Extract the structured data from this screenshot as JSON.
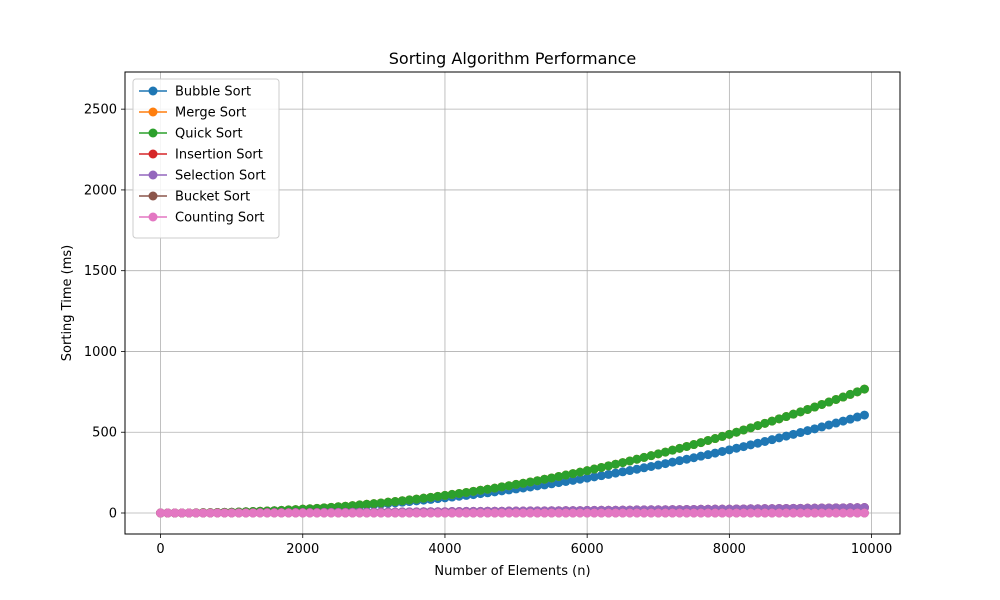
{
  "chart_data": {
    "type": "line",
    "title": "Sorting Algorithm Performance",
    "xlabel": "Number of Elements (n)",
    "ylabel": "Sorting Time (ms)",
    "xlim": [
      -500,
      10400
    ],
    "ylim": [
      -130,
      2730
    ],
    "xticks": [
      0,
      2000,
      4000,
      6000,
      8000,
      10000
    ],
    "yticks": [
      0,
      500,
      1000,
      1500,
      2000,
      2500
    ],
    "grid": true,
    "legend_position": "top-left",
    "x": {
      "start": 0,
      "step": 100,
      "count": 100
    },
    "series": [
      {
        "name": "Bubble Sort",
        "color": "#1f77b4",
        "values": [
          0,
          0,
          0,
          0,
          0,
          1,
          2,
          2,
          3,
          4,
          5,
          6,
          8,
          9,
          10,
          12,
          14,
          16,
          18,
          20,
          23,
          25,
          27,
          30,
          33,
          35,
          38,
          41,
          45,
          48,
          52,
          55,
          59,
          63,
          67,
          71,
          75,
          80,
          84,
          89,
          94,
          99,
          104,
          109,
          114,
          120,
          125,
          131,
          137,
          143,
          149,
          155,
          161,
          168,
          174,
          181,
          188,
          195,
          202,
          209,
          216,
          224,
          231,
          239,
          247,
          255,
          263,
          271,
          280,
          288,
          297,
          306,
          315,
          324,
          333,
          342,
          352,
          361,
          371,
          381,
          391,
          401,
          411,
          422,
          432,
          443,
          454,
          465,
          476,
          487,
          498,
          510,
          521,
          533,
          545,
          557,
          569,
          581,
          594,
          606
        ]
      },
      {
        "name": "Merge Sort",
        "color": "#ff7f0e",
        "values": [
          0,
          0,
          0,
          0,
          0,
          1,
          2,
          2,
          3,
          4,
          5,
          6,
          8,
          9,
          11,
          12,
          14,
          16,
          19,
          21,
          24,
          26,
          29,
          32,
          35,
          39,
          42,
          46,
          50,
          54,
          58,
          62,
          67,
          71,
          76,
          81,
          86,
          92,
          97,
          103,
          109,
          115,
          121,
          127,
          134,
          141,
          147,
          154,
          162,
          169,
          177,
          184,
          192,
          200,
          209,
          217,
          226,
          235,
          244,
          253,
          262,
          272,
          282,
          292,
          302,
          312,
          322,
          333,
          344,
          355,
          366,
          377,
          389,
          400,
          412,
          424,
          436,
          449,
          461,
          474,
          487,
          500,
          514,
          527,
          541,
          555,
          569,
          583,
          597,
          612,
          626,
          641,
          656,
          672,
          687,
          703,
          718,
          734,
          750,
          767
        ]
      },
      {
        "name": "Quick Sort",
        "color": "#2ca02c",
        "values": [
          0,
          0,
          0,
          0,
          0,
          1,
          2,
          2,
          3,
          4,
          5,
          6,
          8,
          9,
          11,
          12,
          14,
          16,
          19,
          21,
          24,
          26,
          29,
          32,
          35,
          39,
          42,
          46,
          50,
          54,
          58,
          62,
          67,
          71,
          76,
          81,
          86,
          92,
          97,
          103,
          109,
          115,
          121,
          127,
          134,
          141,
          147,
          154,
          162,
          169,
          177,
          184,
          192,
          200,
          209,
          217,
          226,
          235,
          244,
          253,
          262,
          272,
          282,
          292,
          302,
          312,
          322,
          333,
          344,
          355,
          366,
          377,
          389,
          400,
          412,
          424,
          436,
          449,
          461,
          474,
          487,
          500,
          514,
          527,
          541,
          555,
          569,
          583,
          597,
          612,
          626,
          641,
          656,
          672,
          687,
          703,
          718,
          734,
          750,
          767
        ]
      },
      {
        "name": "Insertion Sort",
        "color": "#d62728",
        "values": [
          0,
          0,
          0,
          0,
          0,
          0,
          0,
          0,
          1,
          1,
          1,
          1,
          1,
          1,
          2,
          2,
          2,
          2,
          2,
          3,
          3,
          3,
          3,
          4,
          4,
          4,
          4,
          5,
          5,
          5,
          5,
          6,
          6,
          6,
          7,
          7,
          7,
          8,
          8,
          8,
          8,
          9,
          9,
          10,
          10,
          10,
          11,
          11,
          11,
          12,
          12,
          12,
          13,
          13,
          13,
          14,
          14,
          15,
          15,
          15,
          16,
          16,
          17,
          17,
          17,
          18,
          18,
          19,
          19,
          20,
          20,
          20,
          21,
          21,
          22,
          22,
          23,
          23,
          24,
          24,
          24,
          25,
          25,
          26,
          26,
          27,
          27,
          28,
          28,
          29,
          29,
          30,
          30,
          31,
          31,
          32,
          32,
          33,
          33,
          34
        ]
      },
      {
        "name": "Selection Sort",
        "color": "#9467bd",
        "values": [
          0,
          0,
          0,
          0,
          0,
          0,
          0,
          0,
          1,
          1,
          1,
          1,
          1,
          1,
          2,
          2,
          2,
          2,
          2,
          3,
          3,
          3,
          3,
          4,
          4,
          4,
          4,
          5,
          5,
          5,
          5,
          6,
          6,
          6,
          7,
          7,
          7,
          8,
          8,
          8,
          8,
          9,
          9,
          10,
          10,
          10,
          11,
          11,
          11,
          12,
          12,
          12,
          13,
          13,
          13,
          14,
          14,
          15,
          15,
          15,
          16,
          16,
          17,
          17,
          17,
          18,
          18,
          19,
          19,
          20,
          20,
          20,
          21,
          21,
          22,
          22,
          23,
          23,
          24,
          24,
          24,
          25,
          25,
          26,
          26,
          27,
          27,
          28,
          28,
          29,
          29,
          30,
          30,
          31,
          31,
          32,
          32,
          33,
          33,
          34
        ]
      },
      {
        "name": "Bucket Sort",
        "color": "#8c564b",
        "values": [
          0,
          0,
          0,
          0,
          0,
          0,
          0,
          0,
          0,
          0,
          0,
          0,
          0,
          0,
          0,
          0,
          0,
          0,
          0,
          0,
          0,
          0,
          0,
          0,
          0,
          0,
          0,
          0,
          0,
          0,
          0,
          0,
          0,
          0,
          0,
          0,
          0,
          0,
          0,
          0,
          0,
          0,
          0,
          0,
          0,
          0,
          0,
          0,
          0,
          0,
          0,
          0,
          0,
          0,
          0,
          0,
          0,
          0,
          0,
          0,
          0,
          0,
          0,
          0,
          0,
          0,
          0,
          0,
          0,
          0,
          0,
          0,
          0,
          0,
          0,
          0,
          0,
          0,
          0,
          0,
          0,
          0,
          0,
          0,
          0,
          0,
          0,
          0,
          0,
          0,
          0,
          0,
          0,
          0,
          0,
          0,
          0,
          0,
          0,
          0
        ]
      },
      {
        "name": "Counting Sort",
        "color": "#e377c2",
        "values": [
          0,
          0,
          0,
          0,
          0,
          0,
          0,
          0,
          0,
          0,
          0,
          0,
          0,
          0,
          0,
          0,
          0,
          0,
          0,
          0,
          0,
          0,
          0,
          0,
          0,
          0,
          0,
          0,
          0,
          0,
          0,
          0,
          0,
          0,
          0,
          0,
          0,
          0,
          0,
          0,
          0,
          0,
          0,
          0,
          0,
          0,
          0,
          0,
          0,
          0,
          0,
          0,
          0,
          0,
          0,
          0,
          0,
          0,
          0,
          0,
          0,
          0,
          0,
          0,
          0,
          0,
          0,
          0,
          0,
          0,
          0,
          0,
          0,
          0,
          0,
          0,
          0,
          0,
          0,
          0,
          0,
          0,
          0,
          0,
          0,
          0,
          0,
          0,
          0,
          0,
          0,
          0,
          0,
          0,
          0,
          0,
          0,
          0,
          0,
          0
        ]
      }
    ]
  }
}
